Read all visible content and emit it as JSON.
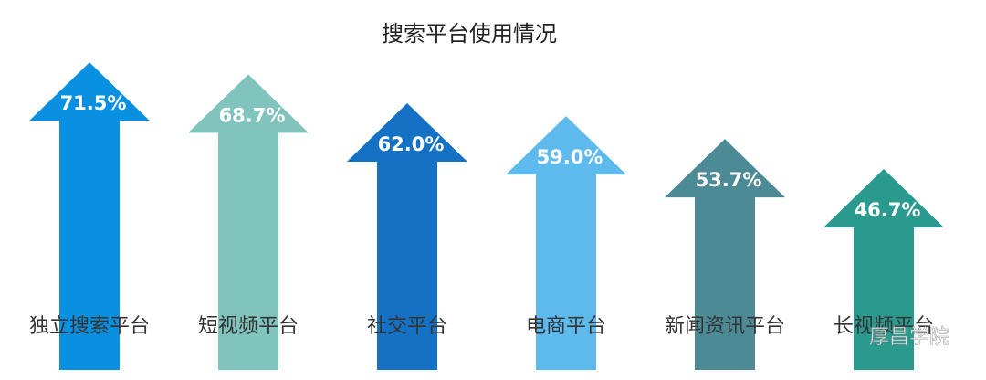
{
  "chart_data": {
    "type": "arrow-bar",
    "title": "搜索平台使用情况",
    "categories": [
      "独立搜索平台",
      "短视频平台",
      "社交平台",
      "电商平台",
      "新闻资讯平台",
      "长视频平台"
    ],
    "values": [
      71.5,
      68.7,
      62.0,
      59.0,
      53.7,
      46.7
    ],
    "value_labels": [
      "71.5%",
      "68.7%",
      "62.0%",
      "59.0%",
      "53.7%",
      "46.7%"
    ],
    "colors": [
      "#0a90e0",
      "#80c4bd",
      "#1471c3",
      "#5eb9ec",
      "#4c8a95",
      "#2a9a8e"
    ]
  },
  "watermark": "厚昌学院"
}
